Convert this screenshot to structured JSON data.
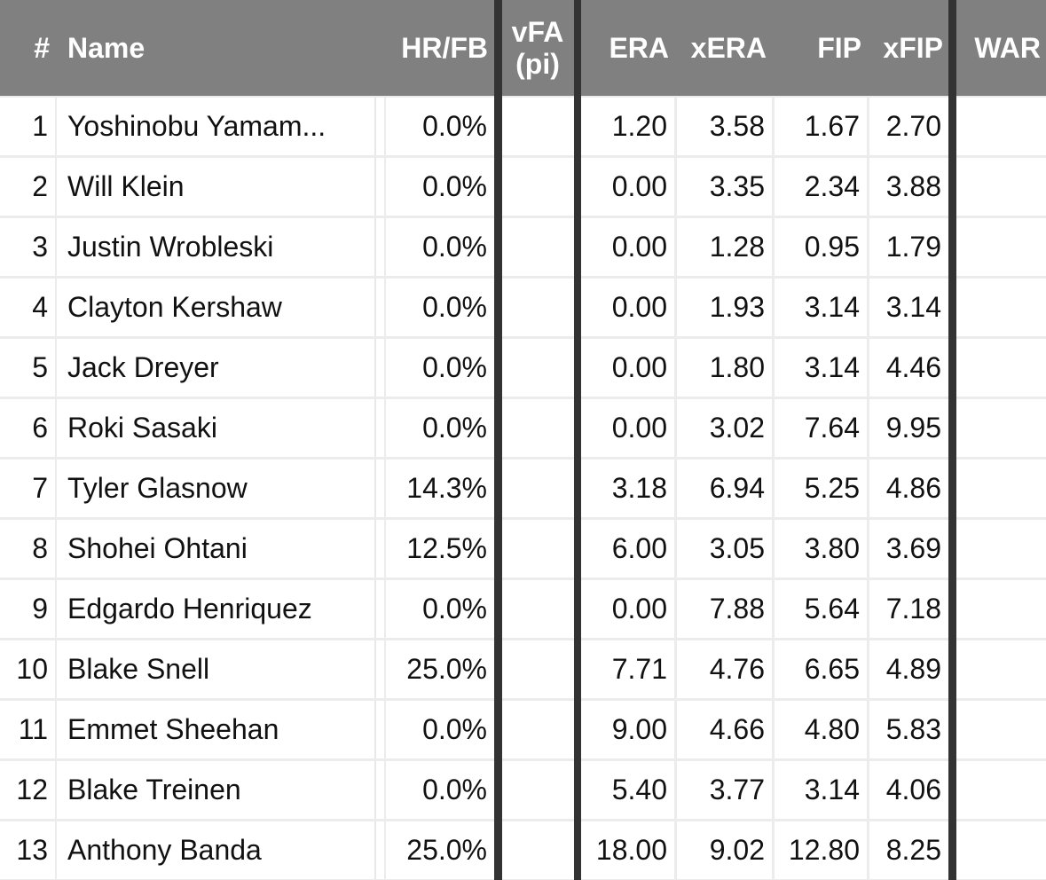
{
  "columns": {
    "rank": "#",
    "name": "Name",
    "hr_fb": "HR/FB",
    "vfa_line1": "vFA",
    "vfa_line2": "(pi)",
    "era": "ERA",
    "xera": "xERA",
    "fip": "FIP",
    "xfip": "xFIP",
    "war": "WAR"
  },
  "rows": [
    {
      "rank": "1",
      "name": "Yoshinobu Yamam...",
      "hr_fb": "0.0%",
      "vfa": "",
      "era": "1.20",
      "xera": "3.58",
      "fip": "1.67",
      "xfip": "2.70",
      "war": ""
    },
    {
      "rank": "2",
      "name": "Will Klein",
      "hr_fb": "0.0%",
      "vfa": "",
      "era": "0.00",
      "xera": "3.35",
      "fip": "2.34",
      "xfip": "3.88",
      "war": ""
    },
    {
      "rank": "3",
      "name": "Justin Wrobleski",
      "hr_fb": "0.0%",
      "vfa": "",
      "era": "0.00",
      "xera": "1.28",
      "fip": "0.95",
      "xfip": "1.79",
      "war": ""
    },
    {
      "rank": "4",
      "name": "Clayton Kershaw",
      "hr_fb": "0.0%",
      "vfa": "",
      "era": "0.00",
      "xera": "1.93",
      "fip": "3.14",
      "xfip": "3.14",
      "war": ""
    },
    {
      "rank": "5",
      "name": "Jack Dreyer",
      "hr_fb": "0.0%",
      "vfa": "",
      "era": "0.00",
      "xera": "1.80",
      "fip": "3.14",
      "xfip": "4.46",
      "war": ""
    },
    {
      "rank": "6",
      "name": "Roki Sasaki",
      "hr_fb": "0.0%",
      "vfa": "",
      "era": "0.00",
      "xera": "3.02",
      "fip": "7.64",
      "xfip": "9.95",
      "war": ""
    },
    {
      "rank": "7",
      "name": "Tyler Glasnow",
      "hr_fb": "14.3%",
      "vfa": "",
      "era": "3.18",
      "xera": "6.94",
      "fip": "5.25",
      "xfip": "4.86",
      "war": ""
    },
    {
      "rank": "8",
      "name": "Shohei Ohtani",
      "hr_fb": "12.5%",
      "vfa": "",
      "era": "6.00",
      "xera": "3.05",
      "fip": "3.80",
      "xfip": "3.69",
      "war": ""
    },
    {
      "rank": "9",
      "name": "Edgardo Henriquez",
      "hr_fb": "0.0%",
      "vfa": "",
      "era": "0.00",
      "xera": "7.88",
      "fip": "5.64",
      "xfip": "7.18",
      "war": ""
    },
    {
      "rank": "10",
      "name": "Blake Snell",
      "hr_fb": "25.0%",
      "vfa": "",
      "era": "7.71",
      "xera": "4.76",
      "fip": "6.65",
      "xfip": "4.89",
      "war": ""
    },
    {
      "rank": "11",
      "name": "Emmet Sheehan",
      "hr_fb": "0.0%",
      "vfa": "",
      "era": "9.00",
      "xera": "4.66",
      "fip": "4.80",
      "xfip": "5.83",
      "war": ""
    },
    {
      "rank": "12",
      "name": "Blake Treinen",
      "hr_fb": "0.0%",
      "vfa": "",
      "era": "5.40",
      "xera": "3.77",
      "fip": "3.14",
      "xfip": "4.06",
      "war": ""
    },
    {
      "rank": "13",
      "name": "Anthony Banda",
      "hr_fb": "25.0%",
      "vfa": "",
      "era": "18.00",
      "xera": "9.02",
      "fip": "12.80",
      "xfip": "8.25",
      "war": ""
    }
  ]
}
